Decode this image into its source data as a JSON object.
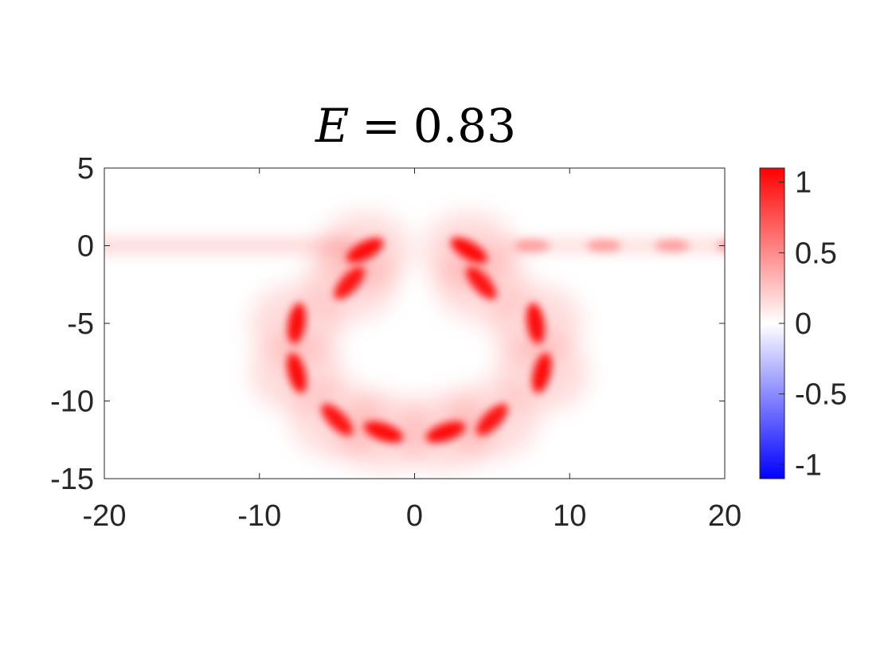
{
  "chart_data": {
    "type": "heatmap",
    "title_var": "E",
    "title_eq": "=",
    "title_val": "0.83",
    "xlabel": "",
    "ylabel": "",
    "xlim": [
      -20,
      20
    ],
    "ylim": [
      -15,
      5
    ],
    "x_ticks": [
      -20,
      -10,
      0,
      10,
      20
    ],
    "x_tick_labels": [
      "-20",
      "-10",
      "0",
      "10",
      "20"
    ],
    "y_ticks": [
      5,
      0,
      -5,
      -10,
      -15
    ],
    "y_tick_labels": [
      "5",
      "0",
      "-5",
      "-10",
      "-15"
    ],
    "colorbar": {
      "limits": [
        -1.1,
        1.1
      ],
      "ticks": [
        1,
        0.5,
        0,
        -0.5,
        -1
      ],
      "tick_labels": [
        "1",
        "0.5",
        "0",
        "-0.5",
        "-1"
      ],
      "colormap": "blue-white-red",
      "low_color": "#0000ff",
      "mid_color": "#ffffff",
      "high_color": "#ff0000"
    },
    "waveguide": {
      "y": 0,
      "input_x_range": [
        -20,
        -4
      ],
      "input_amplitude": 0.15,
      "output_x_range": [
        6,
        20
      ],
      "output_amplitude": 0.3,
      "output_peaks_x": [
        7.6,
        12.2,
        16.6,
        20.6
      ]
    },
    "ring_hotspots": [
      {
        "x": -3.2,
        "y": -0.3,
        "value": 1.0
      },
      {
        "x": 3.5,
        "y": -0.3,
        "value": 1.0
      },
      {
        "x": -4.2,
        "y": -2.4,
        "value": 0.95
      },
      {
        "x": 4.3,
        "y": -2.4,
        "value": 0.95
      },
      {
        "x": -7.6,
        "y": -5.0,
        "value": 1.0
      },
      {
        "x": 7.8,
        "y": -5.0,
        "value": 1.0
      },
      {
        "x": -7.6,
        "y": -8.2,
        "value": 1.0
      },
      {
        "x": 8.2,
        "y": -8.2,
        "value": 1.0
      },
      {
        "x": -5.0,
        "y": -11.2,
        "value": 0.95
      },
      {
        "x": 5.0,
        "y": -11.2,
        "value": 0.95
      },
      {
        "x": -2.0,
        "y": -12.0,
        "value": 1.0
      },
      {
        "x": 2.0,
        "y": -12.0,
        "value": 1.0
      }
    ]
  }
}
